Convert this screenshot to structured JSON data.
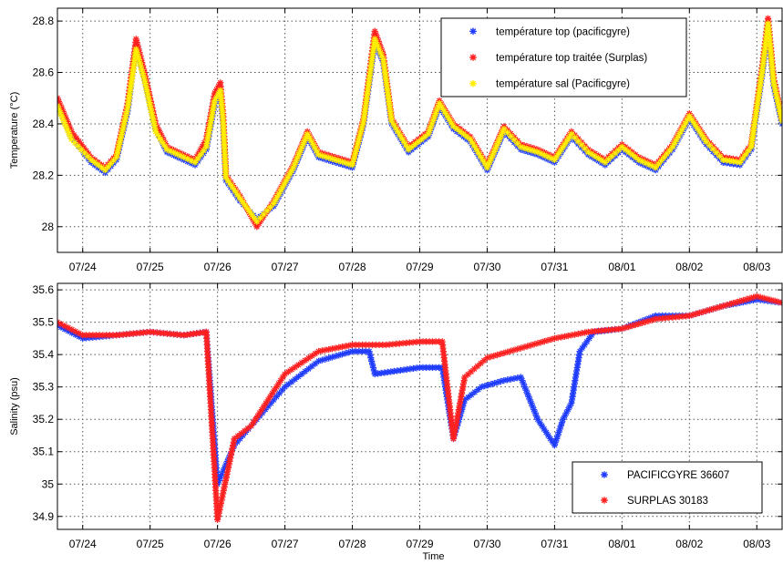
{
  "chart_data": [
    {
      "type": "scatter",
      "title": "",
      "ylabel": "Temperature (°C)",
      "xlabel": "",
      "xlim": [
        "07/23 15:00",
        "08/03 09:00"
      ],
      "ylim": [
        27.9,
        28.85
      ],
      "x_tick_labels": [
        "07/24",
        "07/25",
        "07/26",
        "07/27",
        "07/28",
        "07/29",
        "07/30",
        "07/31",
        "08/01",
        "08/02",
        "08/03"
      ],
      "y_tick_labels": [
        "28",
        "28.2",
        "28.4",
        "28.6",
        "28.8"
      ],
      "y_ticks": [
        28,
        28.2,
        28.4,
        28.6,
        28.8
      ],
      "grid": true,
      "legend_position": "top-right",
      "marker": "*",
      "series": [
        {
          "name": "température top (pacificgyre)",
          "color": "#1f3cff",
          "points": [
            [
              "07/23 15:00",
              28.48
            ],
            [
              "07/23 20:00",
              28.35
            ],
            [
              "07/24 03:00",
              28.25
            ],
            [
              "07/24 08:00",
              28.21
            ],
            [
              "07/24 12:00",
              28.26
            ],
            [
              "07/24 16:00",
              28.45
            ],
            [
              "07/24 19:00",
              28.7
            ],
            [
              "07/24 22:00",
              28.58
            ],
            [
              "07/25 02:00",
              28.38
            ],
            [
              "07/25 06:00",
              28.29
            ],
            [
              "07/25 12:00",
              28.26
            ],
            [
              "07/25 16:00",
              28.24
            ],
            [
              "07/25 20:00",
              28.3
            ],
            [
              "07/25 23:00",
              28.48
            ],
            [
              "07/26 01:00",
              28.52
            ],
            [
              "07/26 02:00",
              28.4
            ],
            [
              "07/26 03:00",
              28.18
            ],
            [
              "07/26 08:00",
              28.1
            ],
            [
              "07/26 14:00",
              28.03
            ],
            [
              "07/26 20:00",
              28.08
            ],
            [
              "07/27 03:00",
              28.22
            ],
            [
              "07/27 08:00",
              28.35
            ],
            [
              "07/27 12:00",
              28.27
            ],
            [
              "07/27 18:00",
              28.25
            ],
            [
              "07/28 00:00",
              28.23
            ],
            [
              "07/28 04:00",
              28.4
            ],
            [
              "07/28 08:00",
              28.72
            ],
            [
              "07/28 11:00",
              28.64
            ],
            [
              "07/28 14:00",
              28.4
            ],
            [
              "07/28 20:00",
              28.29
            ],
            [
              "07/29 03:00",
              28.35
            ],
            [
              "07/29 07:00",
              28.47
            ],
            [
              "07/29 12:00",
              28.38
            ],
            [
              "07/29 18:00",
              28.33
            ],
            [
              "07/30 00:00",
              28.22
            ],
            [
              "07/30 06:00",
              28.37
            ],
            [
              "07/30 12:00",
              28.3
            ],
            [
              "07/30 18:00",
              28.28
            ],
            [
              "07/31 00:00",
              28.25
            ],
            [
              "07/31 06:00",
              28.35
            ],
            [
              "07/31 12:00",
              28.28
            ],
            [
              "07/31 18:00",
              28.24
            ],
            [
              "08/01 00:00",
              28.3
            ],
            [
              "08/01 06:00",
              28.25
            ],
            [
              "08/01 12:00",
              28.22
            ],
            [
              "08/01 18:00",
              28.3
            ],
            [
              "08/02 00:00",
              28.42
            ],
            [
              "08/02 06:00",
              28.32
            ],
            [
              "08/02 12:00",
              28.25
            ],
            [
              "08/02 18:00",
              28.24
            ],
            [
              "08/02 22:00",
              28.3
            ],
            [
              "08/03 02:00",
              28.6
            ],
            [
              "08/03 04:00",
              28.78
            ],
            [
              "08/03 06:00",
              28.55
            ],
            [
              "08/03 09:00",
              28.4
            ]
          ]
        },
        {
          "name": "température top traitée (Surplas)",
          "color": "#ff2020",
          "points": [
            [
              "07/23 15:00",
              28.5
            ],
            [
              "07/23 20:00",
              28.37
            ],
            [
              "07/24 03:00",
              28.27
            ],
            [
              "07/24 08:00",
              28.23
            ],
            [
              "07/24 12:00",
              28.28
            ],
            [
              "07/24 16:00",
              28.48
            ],
            [
              "07/24 19:00",
              28.73
            ],
            [
              "07/24 22:00",
              28.6
            ],
            [
              "07/25 02:00",
              28.4
            ],
            [
              "07/25 06:00",
              28.31
            ],
            [
              "07/25 12:00",
              28.28
            ],
            [
              "07/25 16:00",
              28.26
            ],
            [
              "07/25 20:00",
              28.34
            ],
            [
              "07/25 23:00",
              28.52
            ],
            [
              "07/26 01:00",
              28.56
            ],
            [
              "07/26 02:00",
              28.44
            ],
            [
              "07/26 03:00",
              28.2
            ],
            [
              "07/26 08:00",
              28.12
            ],
            [
              "07/26 14:00",
              28.0
            ],
            [
              "07/26 20:00",
              28.1
            ],
            [
              "07/27 03:00",
              28.24
            ],
            [
              "07/27 08:00",
              28.37
            ],
            [
              "07/27 12:00",
              28.29
            ],
            [
              "07/27 18:00",
              28.27
            ],
            [
              "07/28 00:00",
              28.25
            ],
            [
              "07/28 04:00",
              28.42
            ],
            [
              "07/28 08:00",
              28.76
            ],
            [
              "07/28 11:00",
              28.67
            ],
            [
              "07/28 14:00",
              28.42
            ],
            [
              "07/28 20:00",
              28.31
            ],
            [
              "07/29 03:00",
              28.37
            ],
            [
              "07/29 07:00",
              28.49
            ],
            [
              "07/29 12:00",
              28.4
            ],
            [
              "07/29 18:00",
              28.35
            ],
            [
              "07/30 00:00",
              28.24
            ],
            [
              "07/30 06:00",
              28.39
            ],
            [
              "07/30 12:00",
              28.32
            ],
            [
              "07/30 18:00",
              28.3
            ],
            [
              "07/31 00:00",
              28.27
            ],
            [
              "07/31 06:00",
              28.37
            ],
            [
              "07/31 12:00",
              28.3
            ],
            [
              "07/31 18:00",
              28.26
            ],
            [
              "08/01 00:00",
              28.32
            ],
            [
              "08/01 06:00",
              28.27
            ],
            [
              "08/01 12:00",
              28.24
            ],
            [
              "08/01 18:00",
              28.32
            ],
            [
              "08/02 00:00",
              28.44
            ],
            [
              "08/02 06:00",
              28.34
            ],
            [
              "08/02 12:00",
              28.27
            ],
            [
              "08/02 18:00",
              28.26
            ],
            [
              "08/02 22:00",
              28.32
            ],
            [
              "08/03 02:00",
              28.63
            ],
            [
              "08/03 04:00",
              28.81
            ],
            [
              "08/03 06:00",
              28.58
            ],
            [
              "08/03 09:00",
              28.42
            ]
          ]
        },
        {
          "name": "température sal (Pacificgyre)",
          "color": "#ffee00",
          "points": [
            [
              "07/23 15:00",
              28.47
            ],
            [
              "07/23 20:00",
              28.34
            ],
            [
              "07/24 03:00",
              28.26
            ],
            [
              "07/24 08:00",
              28.22
            ],
            [
              "07/24 12:00",
              28.27
            ],
            [
              "07/24 16:00",
              28.46
            ],
            [
              "07/24 19:00",
              28.69
            ],
            [
              "07/24 22:00",
              28.57
            ],
            [
              "07/25 02:00",
              28.37
            ],
            [
              "07/25 06:00",
              28.3
            ],
            [
              "07/25 12:00",
              28.27
            ],
            [
              "07/25 16:00",
              28.25
            ],
            [
              "07/25 20:00",
              28.31
            ],
            [
              "07/25 23:00",
              28.49
            ],
            [
              "07/26 01:00",
              28.53
            ],
            [
              "07/26 02:00",
              28.41
            ],
            [
              "07/26 03:00",
              28.19
            ],
            [
              "07/26 08:00",
              28.11
            ],
            [
              "07/26 14:00",
              28.02
            ],
            [
              "07/26 20:00",
              28.09
            ],
            [
              "07/27 03:00",
              28.23
            ],
            [
              "07/27 08:00",
              28.36
            ],
            [
              "07/27 12:00",
              28.28
            ],
            [
              "07/27 18:00",
              28.26
            ],
            [
              "07/28 00:00",
              28.24
            ],
            [
              "07/28 04:00",
              28.41
            ],
            [
              "07/28 08:00",
              28.73
            ],
            [
              "07/28 11:00",
              28.65
            ],
            [
              "07/28 14:00",
              28.41
            ],
            [
              "07/28 20:00",
              28.3
            ],
            [
              "07/29 03:00",
              28.36
            ],
            [
              "07/29 07:00",
              28.48
            ],
            [
              "07/29 12:00",
              28.39
            ],
            [
              "07/29 18:00",
              28.34
            ],
            [
              "07/30 00:00",
              28.23
            ],
            [
              "07/30 06:00",
              28.38
            ],
            [
              "07/30 12:00",
              28.31
            ],
            [
              "07/30 18:00",
              28.29
            ],
            [
              "07/31 00:00",
              28.26
            ],
            [
              "07/31 06:00",
              28.36
            ],
            [
              "07/31 12:00",
              28.29
            ],
            [
              "07/31 18:00",
              28.25
            ],
            [
              "08/01 00:00",
              28.31
            ],
            [
              "08/01 06:00",
              28.26
            ],
            [
              "08/01 12:00",
              28.23
            ],
            [
              "08/01 18:00",
              28.31
            ],
            [
              "08/02 00:00",
              28.43
            ],
            [
              "08/02 06:00",
              28.33
            ],
            [
              "08/02 12:00",
              28.26
            ],
            [
              "08/02 18:00",
              28.25
            ],
            [
              "08/02 22:00",
              28.31
            ],
            [
              "08/03 02:00",
              28.61
            ],
            [
              "08/03 04:00",
              28.79
            ],
            [
              "08/03 06:00",
              28.56
            ],
            [
              "08/03 09:00",
              28.41
            ]
          ]
        }
      ]
    },
    {
      "type": "scatter",
      "title": "",
      "ylabel": "Salinity (psu)",
      "xlabel": "Time",
      "xlim": [
        "07/23 15:00",
        "08/03 09:00"
      ],
      "ylim": [
        34.86,
        35.62
      ],
      "x_tick_labels": [
        "07/24",
        "07/25",
        "07/26",
        "07/27",
        "07/28",
        "07/29",
        "07/30",
        "07/31",
        "08/01",
        "08/02",
        "08/03"
      ],
      "y_tick_labels": [
        "34.9",
        "35",
        "35.1",
        "35.2",
        "35.3",
        "35.4",
        "35.5",
        "35.6"
      ],
      "y_ticks": [
        34.9,
        35.0,
        35.1,
        35.2,
        35.3,
        35.4,
        35.5,
        35.6
      ],
      "grid": true,
      "legend_position": "bottom-right",
      "marker": "*",
      "series": [
        {
          "name": "PACIFICGYRE 36607",
          "color": "#1f3cff",
          "points": [
            [
              "07/23 15:00",
              35.49
            ],
            [
              "07/24 00:00",
              35.45
            ],
            [
              "07/24 12:00",
              35.46
            ],
            [
              "07/25 00:00",
              35.47
            ],
            [
              "07/25 12:00",
              35.46
            ],
            [
              "07/25 20:00",
              35.47
            ],
            [
              "07/26 00:00",
              35.0
            ],
            [
              "07/26 06:00",
              35.12
            ],
            [
              "07/26 12:00",
              35.18
            ],
            [
              "07/27 00:00",
              35.3
            ],
            [
              "07/27 12:00",
              35.38
            ],
            [
              "07/28 00:00",
              35.41
            ],
            [
              "07/28 06:00",
              35.41
            ],
            [
              "07/28 08:00",
              35.34
            ],
            [
              "07/28 16:00",
              35.35
            ],
            [
              "07/29 00:00",
              35.36
            ],
            [
              "07/29 08:00",
              35.36
            ],
            [
              "07/29 12:00",
              35.14
            ],
            [
              "07/29 16:00",
              35.26
            ],
            [
              "07/29 22:00",
              35.3
            ],
            [
              "07/30 06:00",
              35.32
            ],
            [
              "07/30 12:00",
              35.33
            ],
            [
              "07/30 18:00",
              35.2
            ],
            [
              "07/30 21:00",
              35.16
            ],
            [
              "07/31 00:00",
              35.12
            ],
            [
              "07/31 03:00",
              35.2
            ],
            [
              "07/31 06:00",
              35.25
            ],
            [
              "07/31 09:00",
              35.41
            ],
            [
              "07/31 14:00",
              35.47
            ],
            [
              "08/01 00:00",
              35.48
            ],
            [
              "08/01 12:00",
              35.52
            ],
            [
              "08/02 00:00",
              35.52
            ],
            [
              "08/02 12:00",
              35.55
            ],
            [
              "08/03 00:00",
              35.57
            ],
            [
              "08/03 09:00",
              35.56
            ]
          ]
        },
        {
          "name": "SURPLAS 30183",
          "color": "#ff2020",
          "points": [
            [
              "07/23 15:00",
              35.5
            ],
            [
              "07/24 00:00",
              35.46
            ],
            [
              "07/24 12:00",
              35.46
            ],
            [
              "07/25 00:00",
              35.47
            ],
            [
              "07/25 12:00",
              35.46
            ],
            [
              "07/25 20:00",
              35.47
            ],
            [
              "07/26 00:00",
              34.89
            ],
            [
              "07/26 06:00",
              35.14
            ],
            [
              "07/26 12:00",
              35.18
            ],
            [
              "07/27 00:00",
              35.34
            ],
            [
              "07/27 12:00",
              35.41
            ],
            [
              "07/28 00:00",
              35.43
            ],
            [
              "07/28 12:00",
              35.43
            ],
            [
              "07/29 00:00",
              35.44
            ],
            [
              "07/29 08:00",
              35.44
            ],
            [
              "07/29 12:00",
              35.14
            ],
            [
              "07/29 16:00",
              35.33
            ],
            [
              "07/30 00:00",
              35.39
            ],
            [
              "07/30 12:00",
              35.42
            ],
            [
              "07/31 00:00",
              35.45
            ],
            [
              "07/31 12:00",
              35.47
            ],
            [
              "08/01 00:00",
              35.48
            ],
            [
              "08/01 12:00",
              35.51
            ],
            [
              "08/02 00:00",
              35.52
            ],
            [
              "08/02 12:00",
              35.55
            ],
            [
              "08/03 00:00",
              35.58
            ],
            [
              "08/03 09:00",
              35.56
            ]
          ]
        }
      ]
    }
  ]
}
